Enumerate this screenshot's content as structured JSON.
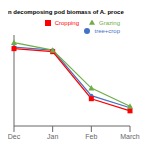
{
  "chart_data": {
    "type": "line",
    "title": "n decomposing pod biomass of A. proce",
    "categories": [
      "Dec",
      "Jan",
      "Feb",
      "March"
    ],
    "series": [
      {
        "name": "tree+crop",
        "color": "#4472C4",
        "marker": "circle",
        "values": [
          92,
          90,
          60,
          52
        ]
      },
      {
        "name": "Cropping",
        "color": "#FF0000",
        "marker": "square",
        "values": [
          91,
          89,
          58,
          50
        ]
      },
      {
        "name": "Grazing",
        "color": "#70AD47",
        "marker": "triangle",
        "values": [
          95,
          90,
          65,
          53
        ]
      }
    ],
    "ylim": [
      40,
      100
    ],
    "grid": false,
    "legend": "upper right",
    "tick_labels": "x"
  }
}
